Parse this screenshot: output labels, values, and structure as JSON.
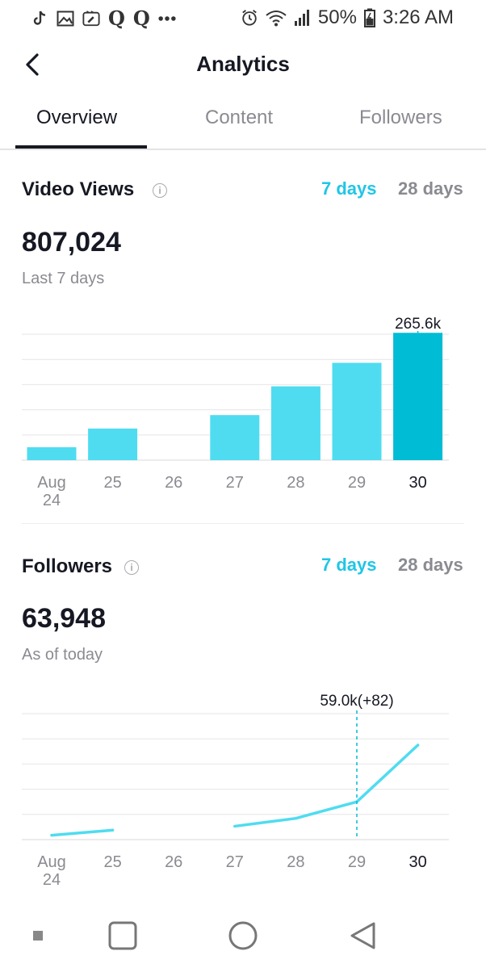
{
  "status_bar": {
    "battery": "50%",
    "time": "3:26 AM",
    "left_icons": [
      "tiktok-icon",
      "image-icon",
      "edit-icon",
      "q-icon",
      "q-icon",
      "more-icon"
    ],
    "right_icons": [
      "alarm-icon",
      "wifi-icon",
      "signal-icon",
      "battery-icon"
    ]
  },
  "header": {
    "title": "Analytics"
  },
  "tabs": [
    {
      "label": "Overview",
      "active": true
    },
    {
      "label": "Content",
      "active": false
    },
    {
      "label": "Followers",
      "active": false
    }
  ],
  "video_views": {
    "title": "Video Views",
    "range_7": "7 days",
    "range_28": "28 days",
    "total": "807,024",
    "caption": "Last 7 days",
    "tooltip": "265.6k"
  },
  "followers": {
    "title": "Followers",
    "range_7": "7 days",
    "range_28": "28 days",
    "total": "63,948",
    "caption": "As of today",
    "tooltip": "59.0k(+82)"
  },
  "chart_data": [
    {
      "type": "bar",
      "categories": [
        "Aug 24",
        "25",
        "26",
        "27",
        "28",
        "29",
        "30"
      ],
      "values": [
        27,
        66,
        0,
        94,
        154,
        203,
        265.6
      ],
      "highlight_index": 6,
      "highlight_label": "265.6k",
      "ylim": [
        0,
        330
      ],
      "grid": true,
      "colors": {
        "bar": "#4fdcf0",
        "highlight": "#00bcd4",
        "label": "#8a8b91"
      }
    },
    {
      "type": "line",
      "categories": [
        "Aug 24",
        "25",
        "26",
        "27",
        "28",
        "29",
        "30"
      ],
      "values": [
        55,
        120,
        null,
        170,
        270,
        480,
        1200
      ],
      "highlight_index": 5,
      "highlight_label": "59.0k(+82)",
      "ylim": [
        0,
        1600
      ],
      "grid": true,
      "colors": {
        "line": "#4fdcf0",
        "label": "#8a8b91"
      }
    }
  ],
  "nav_bar": [
    "recent-apps-button",
    "home-button",
    "back-button"
  ]
}
